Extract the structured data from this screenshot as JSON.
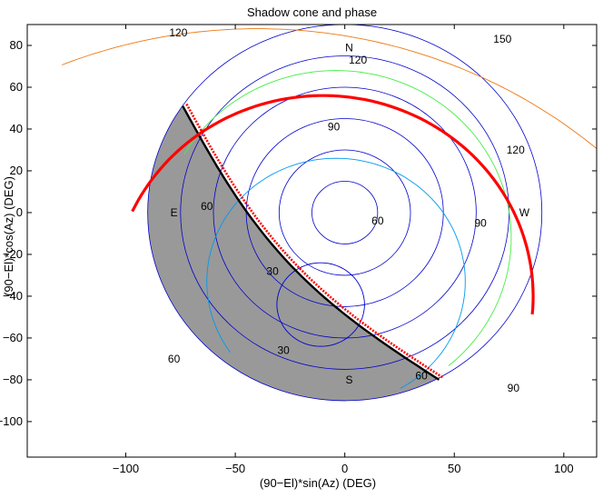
{
  "chart_data": {
    "type": "line",
    "title": "Shadow cone and phase",
    "xlabel": "(90−El)*sin(Az) (DEG)",
    "ylabel": "(90−El)*cos(Az) (DEG)",
    "xlim": [
      -145,
      115
    ],
    "ylim": [
      -117,
      90
    ],
    "x_ticks": [
      -100,
      -50,
      0,
      50,
      100
    ],
    "y_ticks": [
      80,
      60,
      40,
      20,
      0,
      -20,
      -40,
      -60,
      -80,
      -100
    ],
    "x_tick_labels": [
      "−100",
      "−50",
      "0",
      "50",
      "100"
    ],
    "y_tick_labels": [
      "80",
      "60",
      "40",
      "20",
      "0",
      "−20",
      "−40",
      "−60",
      "−80",
      "−100"
    ],
    "grid": false,
    "compass_labels": [
      {
        "text": "N",
        "x": 2,
        "y": 79
      },
      {
        "text": "W",
        "x": 82,
        "y": 0
      },
      {
        "text": "E",
        "x": -78,
        "y": 0
      },
      {
        "text": "S",
        "x": 2,
        "y": -80
      }
    ],
    "elevation_rings": {
      "radii": [
        15,
        30,
        45,
        60,
        75,
        90
      ],
      "color": "#0000cc"
    },
    "shadow_region": {
      "color": "#999999",
      "edge_color": "#000000",
      "red_edge_color": "#ff0000"
    },
    "phase_contours": [
      {
        "level": 30,
        "color": "#0000cc",
        "label_text": "30",
        "labels": [
          [
            -33,
            -28
          ],
          [
            -28,
            -66
          ]
        ]
      },
      {
        "level": 60,
        "color": "#0099ee",
        "label_text": "60",
        "labels": [
          [
            -63,
            3
          ],
          [
            15,
            -4
          ],
          [
            -78,
            -70
          ],
          [
            35,
            -78
          ]
        ]
      },
      {
        "level": 90,
        "color": "#44ee44",
        "label_text": "90",
        "labels": [
          [
            -5,
            41
          ],
          [
            62,
            -5
          ],
          [
            77,
            -84
          ]
        ]
      },
      {
        "level": 120,
        "color": "#ee7711",
        "label_text": "120",
        "labels": [
          [
            -76,
            86
          ],
          [
            6,
            73
          ],
          [
            78,
            30
          ]
        ]
      },
      {
        "level": 150,
        "color": "#770011",
        "label_text": "150",
        "labels": [
          [
            72,
            83
          ]
        ]
      }
    ],
    "sun_track": {
      "color": "#ff0000"
    }
  }
}
